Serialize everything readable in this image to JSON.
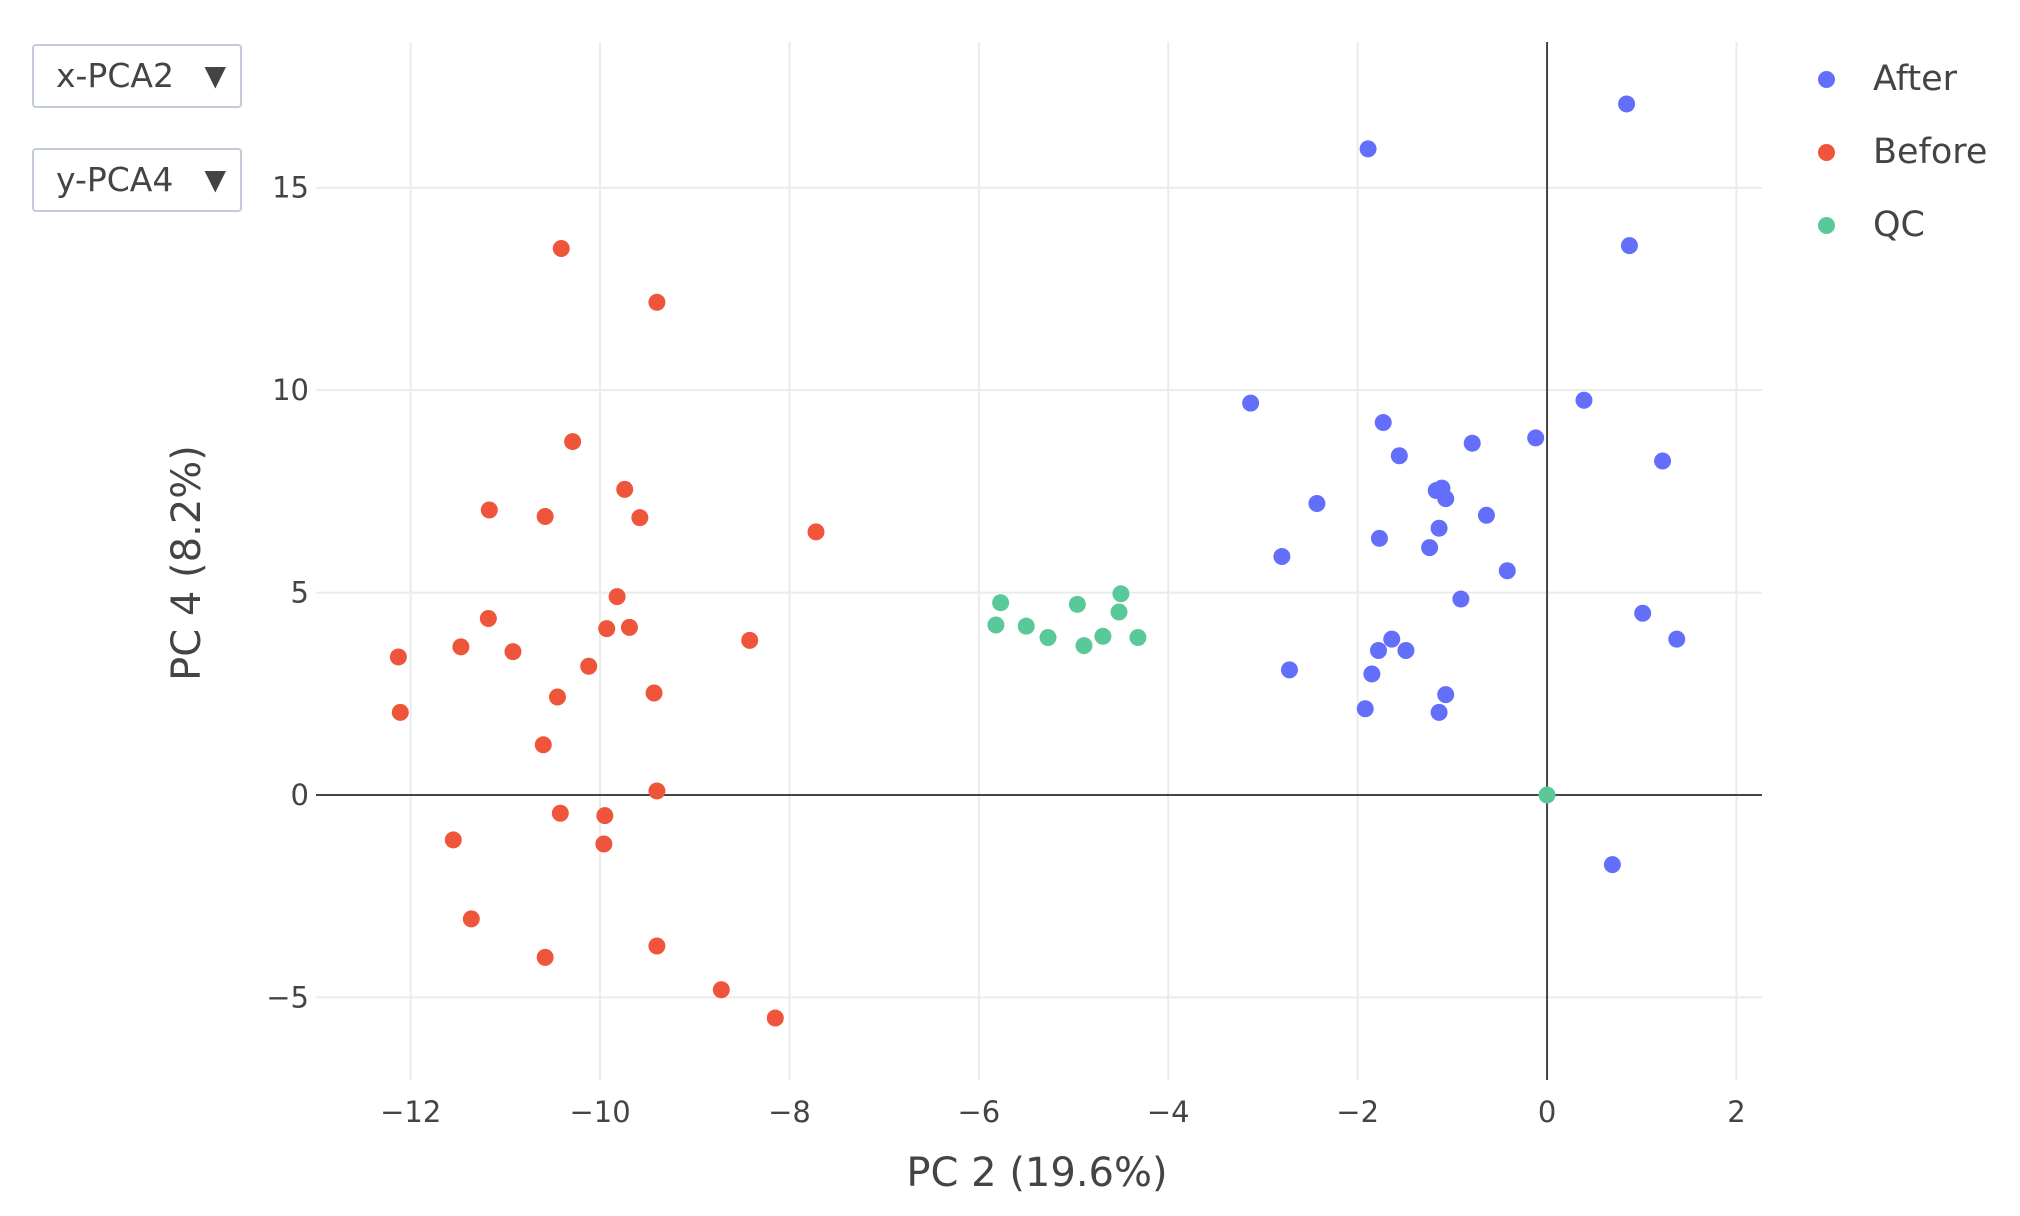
{
  "controls": {
    "x_dropdown": {
      "label": "x-PCA2",
      "arrow": "▼"
    },
    "y_dropdown": {
      "label": "y-PCA4",
      "arrow": "▼"
    }
  },
  "chart_data": {
    "type": "scatter",
    "title": "",
    "xlabel": "PC 2 (19.6%)",
    "ylabel": "PC 4 (8.2%)",
    "xlim": [
      -13.0,
      2.27
    ],
    "ylim": [
      -7.04,
      18.6
    ],
    "xticks": [
      -12,
      -10,
      -8,
      -6,
      -4,
      -2,
      0,
      2
    ],
    "xtick_labels": [
      "−12",
      "−10",
      "−8",
      "−6",
      "−4",
      "−2",
      "0",
      "2"
    ],
    "yticks": [
      -5,
      0,
      5,
      10,
      15
    ],
    "ytick_labels": [
      "−5",
      "0",
      "5",
      "10",
      "15"
    ],
    "grid": true,
    "zero_lines": true,
    "legend_position": "top-right",
    "series": [
      {
        "name": "After",
        "color": "#636efa",
        "points": [
          [
            0.84,
            17.07
          ],
          [
            -1.89,
            15.96
          ],
          [
            0.87,
            13.57
          ],
          [
            -3.13,
            9.68
          ],
          [
            0.39,
            9.75
          ],
          [
            -1.73,
            9.2
          ],
          [
            -0.12,
            8.82
          ],
          [
            -0.79,
            8.69
          ],
          [
            -1.56,
            8.38
          ],
          [
            1.22,
            8.25
          ],
          [
            -1.11,
            7.58
          ],
          [
            -1.17,
            7.52
          ],
          [
            -1.07,
            7.32
          ],
          [
            -2.43,
            7.2
          ],
          [
            -0.64,
            6.91
          ],
          [
            -1.14,
            6.59
          ],
          [
            -1.77,
            6.34
          ],
          [
            -1.24,
            6.11
          ],
          [
            -2.8,
            5.89
          ],
          [
            -0.42,
            5.54
          ],
          [
            -0.91,
            4.84
          ],
          [
            1.01,
            4.49
          ],
          [
            1.37,
            3.85
          ],
          [
            -1.64,
            3.85
          ],
          [
            -1.78,
            3.57
          ],
          [
            -1.49,
            3.57
          ],
          [
            -2.72,
            3.09
          ],
          [
            -1.85,
            2.99
          ],
          [
            -1.07,
            2.48
          ],
          [
            -1.92,
            2.13
          ],
          [
            -1.14,
            2.04
          ],
          [
            0.69,
            -1.72
          ]
        ]
      },
      {
        "name": "Before",
        "color": "#ef553b",
        "points": [
          [
            -10.41,
            13.5
          ],
          [
            -9.4,
            12.17
          ],
          [
            -10.29,
            8.73
          ],
          [
            -9.74,
            7.55
          ],
          [
            -11.17,
            7.04
          ],
          [
            -10.58,
            6.88
          ],
          [
            -9.58,
            6.85
          ],
          [
            -7.72,
            6.5
          ],
          [
            -9.82,
            4.9
          ],
          [
            -11.18,
            4.36
          ],
          [
            -9.93,
            4.11
          ],
          [
            -9.69,
            4.14
          ],
          [
            -11.47,
            3.66
          ],
          [
            -10.92,
            3.54
          ],
          [
            -8.42,
            3.82
          ],
          [
            -12.13,
            3.41
          ],
          [
            -10.12,
            3.18
          ],
          [
            -10.45,
            2.42
          ],
          [
            -9.43,
            2.52
          ],
          [
            -12.11,
            2.04
          ],
          [
            -10.6,
            1.24
          ],
          [
            -9.4,
            0.1
          ],
          [
            -10.42,
            -0.45
          ],
          [
            -9.95,
            -0.51
          ],
          [
            -11.55,
            -1.11
          ],
          [
            -9.96,
            -1.21
          ],
          [
            -11.36,
            -3.06
          ],
          [
            -10.58,
            -4.01
          ],
          [
            -9.4,
            -3.73
          ],
          [
            -8.72,
            -4.81
          ],
          [
            -8.15,
            -5.51
          ]
        ]
      },
      {
        "name": "QC",
        "color": "#5ac99a",
        "points": [
          [
            -4.5,
            4.97
          ],
          [
            -5.77,
            4.75
          ],
          [
            -4.96,
            4.71
          ],
          [
            -4.52,
            4.52
          ],
          [
            -5.82,
            4.2
          ],
          [
            -5.5,
            4.17
          ],
          [
            -4.69,
            3.92
          ],
          [
            -5.27,
            3.89
          ],
          [
            -4.32,
            3.89
          ],
          [
            -4.89,
            3.69
          ],
          [
            0.0,
            0.0
          ]
        ]
      }
    ]
  }
}
